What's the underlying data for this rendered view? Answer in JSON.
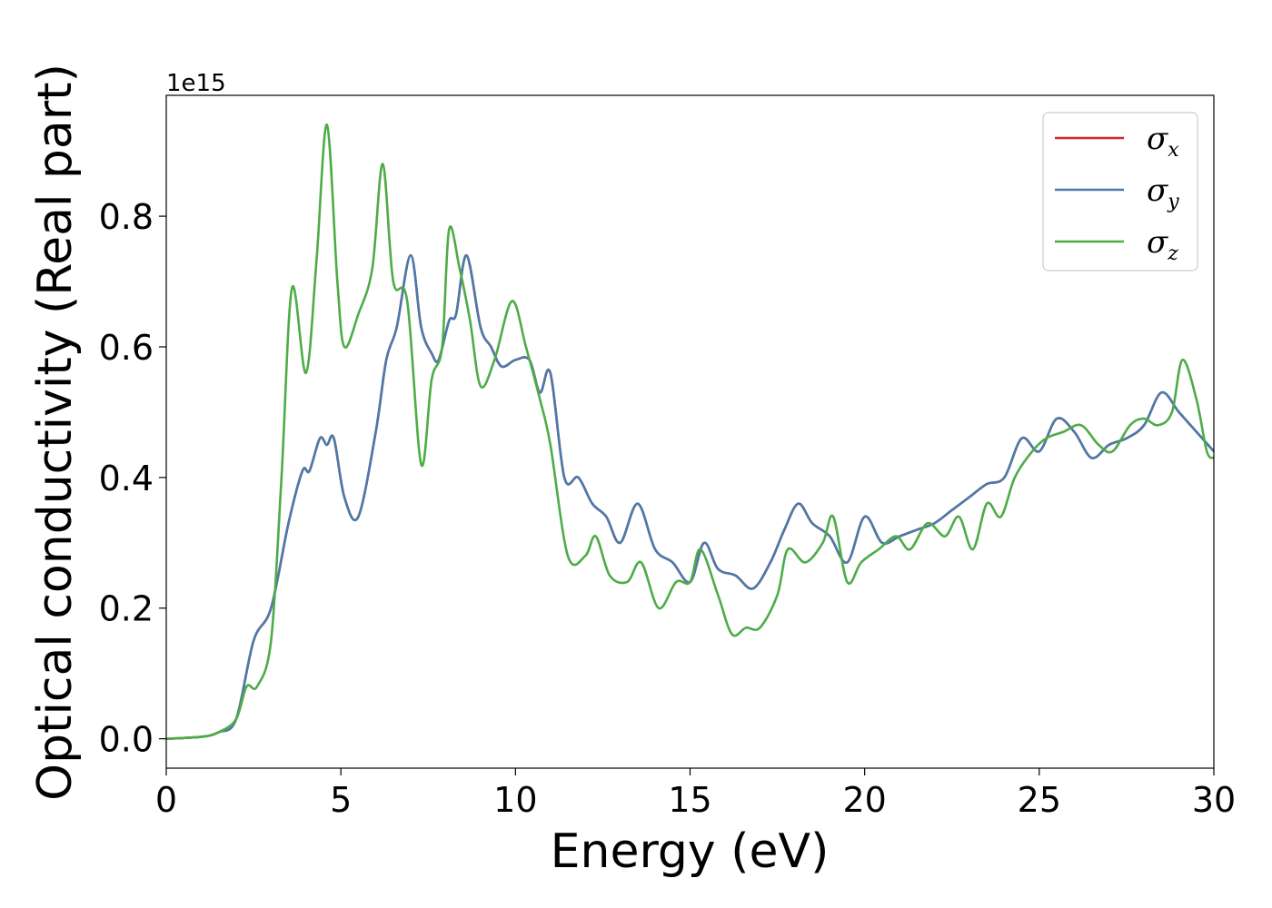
{
  "chart_data": {
    "type": "line",
    "title": "",
    "xlabel": "Energy (eV)",
    "ylabel": "Optical conductivity (Real part)",
    "y_offset_label": "1e15",
    "xlim": [
      0,
      30
    ],
    "ylim": [
      -0.045,
      0.985
    ],
    "x_ticks": [
      0,
      5,
      10,
      15,
      20,
      25,
      30
    ],
    "x_tick_labels": [
      "0",
      "5",
      "10",
      "15",
      "20",
      "25",
      "30"
    ],
    "y_ticks": [
      0.0,
      0.2,
      0.4,
      0.6,
      0.8
    ],
    "y_tick_labels": [
      "0.0",
      "0.2",
      "0.4",
      "0.6",
      "0.8"
    ],
    "grid": false,
    "legend_position": "top-right",
    "series": [
      {
        "name": "σx",
        "symbol": "σ",
        "sub": "x",
        "color": "#d62728",
        "points": [
          [
            0,
            0
          ],
          [
            1,
            0.003
          ],
          [
            1.5,
            0.01
          ],
          [
            2,
            0.03
          ],
          [
            2.5,
            0.15
          ],
          [
            3,
            0.2
          ],
          [
            3.5,
            0.33
          ],
          [
            3.9,
            0.41
          ],
          [
            4.1,
            0.41
          ],
          [
            4.4,
            0.46
          ],
          [
            4.6,
            0.45
          ],
          [
            4.8,
            0.46
          ],
          [
            5.1,
            0.37
          ],
          [
            5.5,
            0.34
          ],
          [
            6,
            0.47
          ],
          [
            6.3,
            0.58
          ],
          [
            6.6,
            0.63
          ],
          [
            7,
            0.74
          ],
          [
            7.3,
            0.63
          ],
          [
            7.6,
            0.59
          ],
          [
            7.8,
            0.58
          ],
          [
            8.1,
            0.64
          ],
          [
            8.3,
            0.65
          ],
          [
            8.6,
            0.74
          ],
          [
            9,
            0.63
          ],
          [
            9.3,
            0.6
          ],
          [
            9.6,
            0.57
          ],
          [
            10,
            0.58
          ],
          [
            10.4,
            0.58
          ],
          [
            10.7,
            0.53
          ],
          [
            11,
            0.56
          ],
          [
            11.4,
            0.4
          ],
          [
            11.8,
            0.4
          ],
          [
            12.2,
            0.36
          ],
          [
            12.6,
            0.34
          ],
          [
            13,
            0.3
          ],
          [
            13.5,
            0.36
          ],
          [
            14,
            0.29
          ],
          [
            14.5,
            0.27
          ],
          [
            15,
            0.24
          ],
          [
            15.4,
            0.3
          ],
          [
            15.8,
            0.26
          ],
          [
            16.3,
            0.25
          ],
          [
            16.8,
            0.23
          ],
          [
            17.3,
            0.27
          ],
          [
            17.7,
            0.32
          ],
          [
            18.1,
            0.36
          ],
          [
            18.5,
            0.33
          ],
          [
            19,
            0.31
          ],
          [
            19.5,
            0.27
          ],
          [
            20,
            0.34
          ],
          [
            20.5,
            0.3
          ],
          [
            21,
            0.31
          ],
          [
            21.5,
            0.32
          ],
          [
            22,
            0.33
          ],
          [
            22.5,
            0.35
          ],
          [
            23,
            0.37
          ],
          [
            23.5,
            0.39
          ],
          [
            24,
            0.4
          ],
          [
            24.5,
            0.46
          ],
          [
            25,
            0.44
          ],
          [
            25.5,
            0.49
          ],
          [
            26,
            0.47
          ],
          [
            26.5,
            0.43
          ],
          [
            27,
            0.45
          ],
          [
            27.5,
            0.46
          ],
          [
            28,
            0.48
          ],
          [
            28.5,
            0.53
          ],
          [
            29,
            0.5
          ],
          [
            29.5,
            0.47
          ],
          [
            30,
            0.44
          ]
        ]
      },
      {
        "name": "σy",
        "symbol": "σ",
        "sub": "y",
        "color": "#4a7aaa",
        "points": [
          [
            0,
            0
          ],
          [
            1,
            0.003
          ],
          [
            1.5,
            0.01
          ],
          [
            2,
            0.03
          ],
          [
            2.5,
            0.15
          ],
          [
            3,
            0.2
          ],
          [
            3.5,
            0.33
          ],
          [
            3.9,
            0.41
          ],
          [
            4.1,
            0.41
          ],
          [
            4.4,
            0.46
          ],
          [
            4.6,
            0.45
          ],
          [
            4.8,
            0.46
          ],
          [
            5.1,
            0.37
          ],
          [
            5.5,
            0.34
          ],
          [
            6,
            0.47
          ],
          [
            6.3,
            0.58
          ],
          [
            6.6,
            0.63
          ],
          [
            7,
            0.74
          ],
          [
            7.3,
            0.63
          ],
          [
            7.6,
            0.59
          ],
          [
            7.8,
            0.58
          ],
          [
            8.1,
            0.64
          ],
          [
            8.3,
            0.65
          ],
          [
            8.6,
            0.74
          ],
          [
            9,
            0.63
          ],
          [
            9.3,
            0.6
          ],
          [
            9.6,
            0.57
          ],
          [
            10,
            0.58
          ],
          [
            10.4,
            0.58
          ],
          [
            10.7,
            0.53
          ],
          [
            11,
            0.56
          ],
          [
            11.4,
            0.4
          ],
          [
            11.8,
            0.4
          ],
          [
            12.2,
            0.36
          ],
          [
            12.6,
            0.34
          ],
          [
            13,
            0.3
          ],
          [
            13.5,
            0.36
          ],
          [
            14,
            0.29
          ],
          [
            14.5,
            0.27
          ],
          [
            15,
            0.24
          ],
          [
            15.4,
            0.3
          ],
          [
            15.8,
            0.26
          ],
          [
            16.3,
            0.25
          ],
          [
            16.8,
            0.23
          ],
          [
            17.3,
            0.27
          ],
          [
            17.7,
            0.32
          ],
          [
            18.1,
            0.36
          ],
          [
            18.5,
            0.33
          ],
          [
            19,
            0.31
          ],
          [
            19.5,
            0.27
          ],
          [
            20,
            0.34
          ],
          [
            20.5,
            0.3
          ],
          [
            21,
            0.31
          ],
          [
            21.5,
            0.32
          ],
          [
            22,
            0.33
          ],
          [
            22.5,
            0.35
          ],
          [
            23,
            0.37
          ],
          [
            23.5,
            0.39
          ],
          [
            24,
            0.4
          ],
          [
            24.5,
            0.46
          ],
          [
            25,
            0.44
          ],
          [
            25.5,
            0.49
          ],
          [
            26,
            0.47
          ],
          [
            26.5,
            0.43
          ],
          [
            27,
            0.45
          ],
          [
            27.5,
            0.46
          ],
          [
            28,
            0.48
          ],
          [
            28.5,
            0.53
          ],
          [
            29,
            0.5
          ],
          [
            29.5,
            0.47
          ],
          [
            30,
            0.44
          ]
        ]
      },
      {
        "name": "σz",
        "symbol": "σ",
        "sub": "z",
        "color": "#4dac47",
        "points": [
          [
            0,
            0
          ],
          [
            1,
            0.003
          ],
          [
            1.5,
            0.01
          ],
          [
            2,
            0.03
          ],
          [
            2.3,
            0.08
          ],
          [
            2.6,
            0.08
          ],
          [
            3,
            0.15
          ],
          [
            3.3,
            0.4
          ],
          [
            3.6,
            0.69
          ],
          [
            4,
            0.56
          ],
          [
            4.3,
            0.73
          ],
          [
            4.6,
            0.94
          ],
          [
            4.9,
            0.7
          ],
          [
            5.1,
            0.6
          ],
          [
            5.5,
            0.65
          ],
          [
            5.9,
            0.72
          ],
          [
            6.2,
            0.88
          ],
          [
            6.5,
            0.7
          ],
          [
            6.9,
            0.67
          ],
          [
            7.3,
            0.42
          ],
          [
            7.6,
            0.55
          ],
          [
            7.9,
            0.6
          ],
          [
            8.1,
            0.78
          ],
          [
            8.4,
            0.72
          ],
          [
            8.7,
            0.64
          ],
          [
            9,
            0.54
          ],
          [
            9.4,
            0.58
          ],
          [
            9.9,
            0.67
          ],
          [
            10.3,
            0.6
          ],
          [
            10.7,
            0.52
          ],
          [
            11,
            0.45
          ],
          [
            11.5,
            0.28
          ],
          [
            12,
            0.28
          ],
          [
            12.3,
            0.31
          ],
          [
            12.7,
            0.25
          ],
          [
            13.2,
            0.24
          ],
          [
            13.6,
            0.27
          ],
          [
            14.1,
            0.2
          ],
          [
            14.6,
            0.24
          ],
          [
            15,
            0.24
          ],
          [
            15.3,
            0.29
          ],
          [
            15.8,
            0.22
          ],
          [
            16.2,
            0.16
          ],
          [
            16.6,
            0.17
          ],
          [
            17,
            0.17
          ],
          [
            17.5,
            0.22
          ],
          [
            17.8,
            0.29
          ],
          [
            18.3,
            0.27
          ],
          [
            18.8,
            0.3
          ],
          [
            19.1,
            0.34
          ],
          [
            19.5,
            0.24
          ],
          [
            19.9,
            0.27
          ],
          [
            20.4,
            0.29
          ],
          [
            20.9,
            0.31
          ],
          [
            21.3,
            0.29
          ],
          [
            21.8,
            0.33
          ],
          [
            22.3,
            0.31
          ],
          [
            22.7,
            0.34
          ],
          [
            23.1,
            0.29
          ],
          [
            23.5,
            0.36
          ],
          [
            23.9,
            0.34
          ],
          [
            24.3,
            0.4
          ],
          [
            24.8,
            0.44
          ],
          [
            25.2,
            0.46
          ],
          [
            25.7,
            0.47
          ],
          [
            26.2,
            0.48
          ],
          [
            26.7,
            0.45
          ],
          [
            27.1,
            0.44
          ],
          [
            27.6,
            0.48
          ],
          [
            28,
            0.49
          ],
          [
            28.4,
            0.48
          ],
          [
            28.8,
            0.5
          ],
          [
            29.1,
            0.58
          ],
          [
            29.5,
            0.52
          ],
          [
            29.8,
            0.44
          ],
          [
            30,
            0.43
          ]
        ]
      }
    ]
  }
}
